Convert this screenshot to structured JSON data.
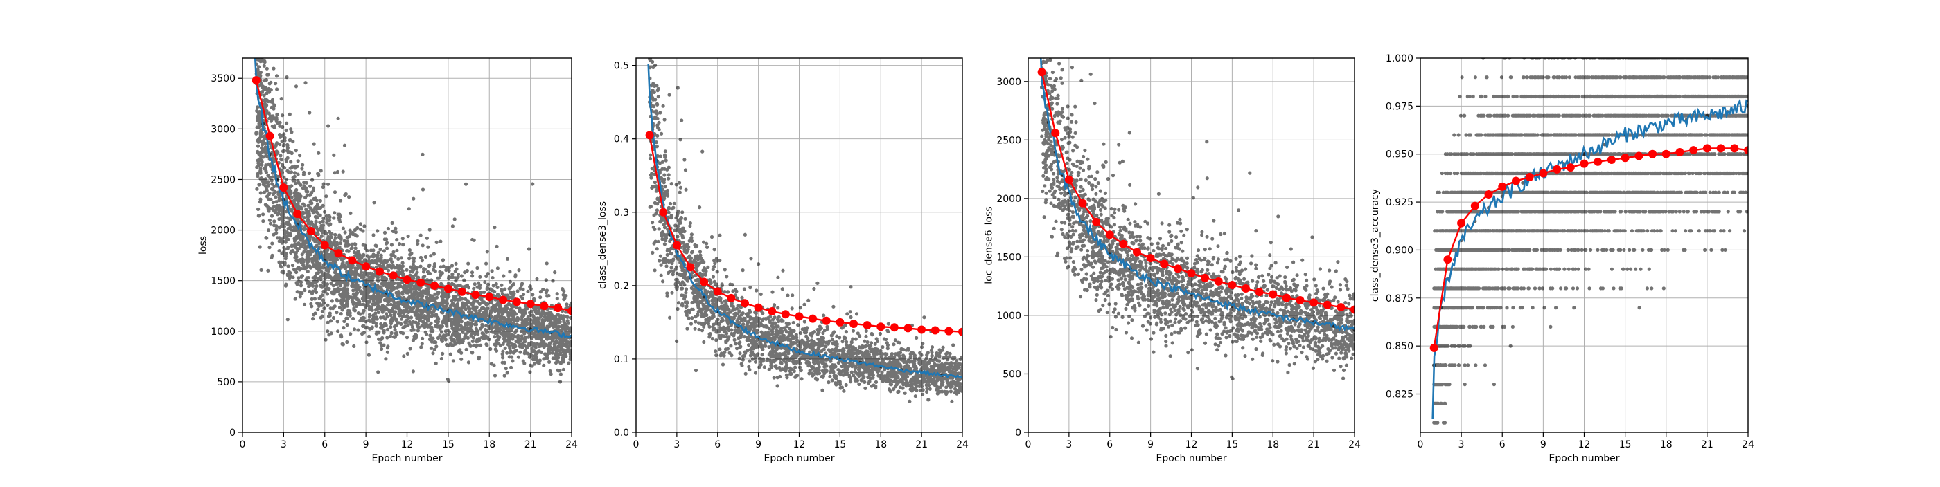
{
  "chart_data": [
    {
      "type": "line",
      "xlabel": "Epoch number",
      "ylabel": "loss",
      "xlim": [
        0,
        24
      ],
      "ylim": [
        0,
        3700
      ],
      "xticks": [
        0,
        3,
        6,
        9,
        12,
        15,
        18,
        21,
        24
      ],
      "yticks": [
        0,
        500,
        1000,
        1500,
        2000,
        2500,
        3000,
        3500
      ],
      "grid": true,
      "series": [
        {
          "kind": "scatter",
          "color": "#000000",
          "x": [
            1.0,
            1.5,
            2.0,
            2.5,
            3.0,
            4.0,
            5.0,
            6.0,
            7.5,
            9.0,
            10.5,
            12.0,
            13.5,
            15.0,
            16.5,
            18.0,
            19.5,
            21.0,
            22.5,
            24.0
          ],
          "y": [
            3450,
            3050,
            2750,
            2500,
            2300,
            2050,
            1850,
            1700,
            1550,
            1450,
            1380,
            1300,
            1250,
            1200,
            1150,
            1100,
            1060,
            1020,
            990,
            950
          ]
        },
        {
          "kind": "line",
          "color": "#1f77b4",
          "x": [
            0.9,
            1.0,
            1.5,
            2.0,
            2.5,
            3.0,
            4.0,
            5.0,
            6.0,
            7.5,
            9.0,
            10.5,
            12.0,
            13.5,
            15.0,
            16.5,
            18.0,
            19.5,
            21.0,
            22.5,
            24.0
          ],
          "y": [
            3700,
            3450,
            3050,
            2750,
            2500,
            2300,
            2050,
            1850,
            1700,
            1550,
            1450,
            1380,
            1300,
            1250,
            1200,
            1150,
            1100,
            1060,
            1020,
            990,
            950
          ]
        },
        {
          "kind": "line-markers",
          "color": "#ff0000",
          "x": [
            1,
            2,
            3,
            4,
            5,
            6,
            7,
            8,
            9,
            10,
            11,
            12,
            13,
            14,
            15,
            16,
            17,
            18,
            19,
            20,
            21,
            22,
            23,
            24
          ],
          "y": [
            3480,
            2930,
            2420,
            2160,
            1990,
            1850,
            1770,
            1700,
            1640,
            1590,
            1550,
            1510,
            1480,
            1450,
            1420,
            1390,
            1360,
            1340,
            1310,
            1290,
            1270,
            1250,
            1230,
            1200
          ]
        }
      ]
    },
    {
      "type": "line",
      "xlabel": "Epoch number",
      "ylabel": "class_dense3_loss",
      "xlim": [
        0,
        24
      ],
      "ylim": [
        0,
        0.51
      ],
      "xticks": [
        0,
        3,
        6,
        9,
        12,
        15,
        18,
        21,
        24
      ],
      "yticks": [
        0.0,
        0.1,
        0.2,
        0.3,
        0.4,
        0.5
      ],
      "yticklabels": [
        "0.0",
        "0.1",
        "0.2",
        "0.3",
        "0.4",
        "0.5"
      ],
      "grid": true,
      "series": [
        {
          "kind": "scatter",
          "color": "#000000",
          "x": [
            1.0,
            1.5,
            2.0,
            2.5,
            3.0,
            4.0,
            5.0,
            6.0,
            7.5,
            9.0,
            10.5,
            12.0,
            13.5,
            15.0,
            16.5,
            18.0,
            19.5,
            21.0,
            22.5,
            24.0
          ],
          "y": [
            0.45,
            0.37,
            0.31,
            0.27,
            0.245,
            0.21,
            0.185,
            0.165,
            0.145,
            0.13,
            0.12,
            0.11,
            0.105,
            0.1,
            0.095,
            0.09,
            0.085,
            0.082,
            0.078,
            0.075
          ]
        },
        {
          "kind": "line",
          "color": "#1f77b4",
          "x": [
            0.9,
            1.0,
            1.5,
            2.0,
            2.5,
            3.0,
            4.0,
            5.0,
            6.0,
            7.5,
            9.0,
            10.5,
            12.0,
            13.5,
            15.0,
            16.5,
            18.0,
            19.5,
            21.0,
            22.5,
            24.0
          ],
          "y": [
            0.51,
            0.45,
            0.37,
            0.31,
            0.27,
            0.245,
            0.21,
            0.185,
            0.165,
            0.145,
            0.13,
            0.12,
            0.11,
            0.105,
            0.1,
            0.095,
            0.09,
            0.085,
            0.082,
            0.078,
            0.075
          ]
        },
        {
          "kind": "line-markers",
          "color": "#ff0000",
          "x": [
            1,
            2,
            3,
            4,
            5,
            6,
            7,
            8,
            9,
            10,
            11,
            12,
            13,
            14,
            15,
            16,
            17,
            18,
            19,
            20,
            21,
            22,
            23,
            24
          ],
          "y": [
            0.405,
            0.3,
            0.255,
            0.225,
            0.205,
            0.192,
            0.183,
            0.176,
            0.17,
            0.165,
            0.161,
            0.158,
            0.155,
            0.152,
            0.15,
            0.148,
            0.146,
            0.144,
            0.143,
            0.142,
            0.14,
            0.139,
            0.138,
            0.137
          ]
        }
      ]
    },
    {
      "type": "line",
      "xlabel": "Epoch number",
      "ylabel": "loc_dense6_loss",
      "xlim": [
        0,
        24
      ],
      "ylim": [
        0,
        3200
      ],
      "xticks": [
        0,
        3,
        6,
        9,
        12,
        15,
        18,
        21,
        24
      ],
      "yticks": [
        0,
        500,
        1000,
        1500,
        2000,
        2500,
        3000
      ],
      "grid": true,
      "series": [
        {
          "kind": "scatter",
          "color": "#000000",
          "x": [
            1.0,
            1.5,
            2.0,
            2.5,
            3.0,
            4.0,
            5.0,
            6.0,
            7.5,
            9.0,
            10.5,
            12.0,
            13.5,
            15.0,
            16.5,
            18.0,
            19.5,
            21.0,
            22.5,
            24.0
          ],
          "y": [
            2950,
            2650,
            2400,
            2200,
            2050,
            1800,
            1650,
            1520,
            1400,
            1300,
            1240,
            1180,
            1130,
            1080,
            1040,
            1000,
            970,
            940,
            910,
            880
          ]
        },
        {
          "kind": "line",
          "color": "#1f77b4",
          "x": [
            0.9,
            1.0,
            1.5,
            2.0,
            2.5,
            3.0,
            4.0,
            5.0,
            6.0,
            7.5,
            9.0,
            10.5,
            12.0,
            13.5,
            15.0,
            16.5,
            18.0,
            19.5,
            21.0,
            22.5,
            24.0
          ],
          "y": [
            3200,
            2950,
            2650,
            2400,
            2200,
            2050,
            1800,
            1650,
            1520,
            1400,
            1300,
            1240,
            1180,
            1130,
            1080,
            1040,
            1000,
            970,
            940,
            910,
            880
          ]
        },
        {
          "kind": "line-markers",
          "color": "#ff0000",
          "x": [
            1,
            2,
            3,
            4,
            5,
            6,
            7,
            8,
            9,
            10,
            11,
            12,
            13,
            14,
            15,
            16,
            17,
            18,
            19,
            20,
            21,
            22,
            23,
            24
          ],
          "y": [
            3080,
            2560,
            2160,
            1960,
            1800,
            1690,
            1610,
            1540,
            1490,
            1440,
            1400,
            1360,
            1320,
            1290,
            1260,
            1230,
            1200,
            1180,
            1150,
            1130,
            1110,
            1090,
            1070,
            1050
          ]
        }
      ]
    },
    {
      "type": "line",
      "xlabel": "Epoch number",
      "ylabel": "class_dense3_accuracy",
      "xlim": [
        0,
        24
      ],
      "ylim": [
        0.805,
        1.0
      ],
      "xticks": [
        0,
        3,
        6,
        9,
        12,
        15,
        18,
        21,
        24
      ],
      "yticks": [
        0.825,
        0.85,
        0.875,
        0.9,
        0.925,
        0.95,
        0.975,
        1.0
      ],
      "yticklabels": [
        "0.825",
        "0.850",
        "0.875",
        "0.900",
        "0.925",
        "0.950",
        "0.975",
        "1.000"
      ],
      "grid": true,
      "series": [
        {
          "kind": "scatter",
          "color": "#000000",
          "x": [
            1.0,
            1.5,
            2.0,
            2.5,
            3.0,
            4.0,
            5.0,
            6.0,
            7.5,
            9.0,
            10.5,
            12.0,
            13.5,
            15.0,
            16.5,
            18.0,
            19.5,
            21.0,
            22.5,
            24.0
          ],
          "y": [
            0.84,
            0.87,
            0.885,
            0.895,
            0.905,
            0.915,
            0.922,
            0.928,
            0.935,
            0.94,
            0.945,
            0.95,
            0.955,
            0.96,
            0.963,
            0.966,
            0.968,
            0.97,
            0.972,
            0.975
          ]
        },
        {
          "kind": "line",
          "color": "#1f77b4",
          "x": [
            0.9,
            1.0,
            1.5,
            2.0,
            2.5,
            3.0,
            4.0,
            5.0,
            6.0,
            7.5,
            9.0,
            10.5,
            12.0,
            13.5,
            15.0,
            16.5,
            18.0,
            19.5,
            21.0,
            22.5,
            24.0
          ],
          "y": [
            0.808,
            0.84,
            0.87,
            0.885,
            0.895,
            0.905,
            0.915,
            0.922,
            0.928,
            0.935,
            0.94,
            0.945,
            0.95,
            0.955,
            0.96,
            0.963,
            0.966,
            0.968,
            0.97,
            0.972,
            0.975
          ]
        },
        {
          "kind": "line-markers",
          "color": "#ff0000",
          "x": [
            1,
            2,
            3,
            4,
            5,
            6,
            7,
            8,
            9,
            10,
            11,
            12,
            13,
            14,
            15,
            16,
            17,
            18,
            19,
            20,
            21,
            22,
            23,
            24
          ],
          "y": [
            0.849,
            0.895,
            0.914,
            0.923,
            0.929,
            0.933,
            0.936,
            0.938,
            0.94,
            0.942,
            0.943,
            0.945,
            0.946,
            0.947,
            0.948,
            0.949,
            0.95,
            0.95,
            0.951,
            0.952,
            0.953,
            0.953,
            0.953,
            0.952
          ]
        }
      ]
    }
  ]
}
